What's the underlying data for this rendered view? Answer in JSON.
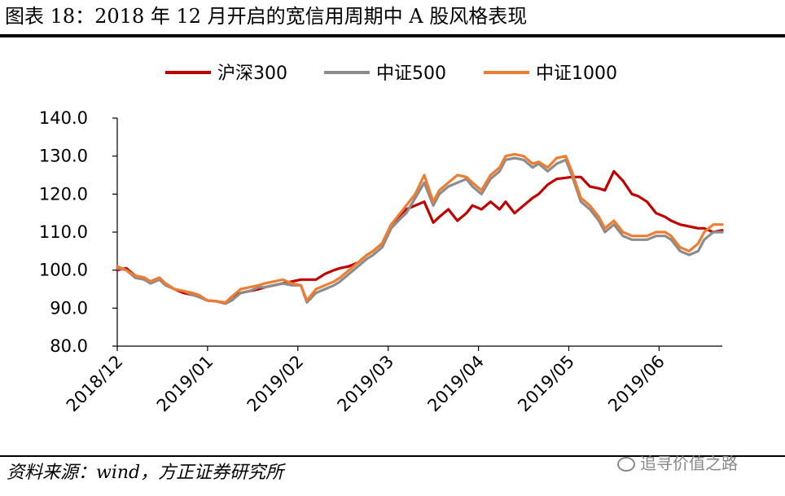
{
  "figure_title": "图表 18：2018 年 12 月开启的宽信用周期中 A 股风格表现",
  "source_note": "资料来源：wind，方正证券研究所",
  "watermark": "追寻价值之路",
  "chart_data": {
    "type": "line",
    "title": "",
    "xlabel": "",
    "ylabel": "",
    "ylim": [
      80,
      140
    ],
    "yticks": [
      "140.0",
      "130.0",
      "120.0",
      "110.0",
      "100.0",
      "90.0",
      "80.0"
    ],
    "xticks": [
      "2018/12",
      "2019/01",
      "2019/02",
      "2019/03",
      "2019/04",
      "2019/05",
      "2019/06"
    ],
    "grid": false,
    "legend_position": "top",
    "x": [
      0,
      3,
      6,
      9,
      11,
      14,
      16,
      19,
      22,
      25,
      27,
      30,
      33,
      36,
      38,
      41,
      44,
      47,
      49,
      52,
      55,
      58,
      61,
      63,
      66,
      69,
      72,
      74,
      77,
      80,
      83,
      85,
      88,
      91,
      94,
      96,
      99,
      102,
      105,
      107,
      110,
      113,
      116,
      118,
      121,
      124,
      127,
      129,
      132,
      135,
      138,
      140,
      143,
      146,
      149,
      151,
      154,
      157,
      160,
      162,
      165,
      168,
      171,
      173,
      176,
      179,
      182,
      184,
      187,
      190,
      193,
      195,
      198,
      201
    ],
    "series": [
      {
        "name": "沪深300",
        "color": "#C00000",
        "values": [
          100,
          100.5,
          98.5,
          98,
          97,
          98,
          96.5,
          95,
          94,
          93.5,
          93,
          92,
          91.8,
          91.2,
          93,
          94,
          94.5,
          95,
          95.5,
          96,
          96.5,
          97,
          97.5,
          97.5,
          97.5,
          99,
          100,
          100.5,
          101,
          102,
          104,
          105,
          107,
          112,
          114.5,
          116,
          117,
          118,
          112.5,
          114,
          116,
          113,
          115,
          117,
          116,
          118,
          116,
          118,
          115,
          117,
          119,
          120,
          122.5,
          124,
          124.3,
          124.5,
          124.5,
          122,
          121.5,
          121,
          126,
          123.5,
          120,
          119.5,
          118,
          115,
          114,
          113,
          112,
          111.5,
          111,
          111,
          110,
          110.5
        ]
      },
      {
        "name": "中证500",
        "color": "#8C8C8C",
        "values": [
          100.5,
          100,
          98,
          97.5,
          96.5,
          97.5,
          96,
          95,
          94.5,
          93.5,
          93,
          92,
          91.8,
          91.2,
          92,
          94,
          94.5,
          95.5,
          95.5,
          96,
          96.5,
          96,
          96,
          91.5,
          94,
          95,
          96,
          97,
          99,
          101,
          103,
          104,
          106,
          111,
          113.5,
          115,
          119,
          123,
          117,
          120,
          122,
          123,
          124,
          122,
          120,
          124,
          126,
          129,
          129.5,
          129,
          127,
          128,
          126,
          128,
          129,
          125,
          118,
          116,
          113,
          110,
          112,
          109,
          108,
          108,
          108,
          109,
          109,
          108,
          105,
          104,
          105,
          108,
          110,
          110
        ]
      },
      {
        "name": "中证1000",
        "color": "#ED7D31",
        "values": [
          101,
          100,
          98.5,
          98,
          97,
          98,
          96.5,
          95,
          94.5,
          94,
          93.5,
          92,
          91.8,
          91.5,
          93,
          95,
          95.5,
          96,
          96.5,
          97,
          97.5,
          96.5,
          96,
          92,
          95,
          96,
          97,
          98,
          100,
          102,
          104,
          105,
          107,
          112,
          115,
          117,
          120,
          125,
          118,
          121,
          123,
          125,
          124.5,
          123,
          121,
          125,
          127,
          130,
          130.5,
          130,
          128,
          128.5,
          127,
          129.5,
          130,
          126,
          119,
          117,
          114,
          111,
          113,
          110,
          109,
          109,
          109,
          110,
          110,
          109,
          106,
          105,
          107,
          110,
          112,
          112
        ]
      }
    ]
  }
}
